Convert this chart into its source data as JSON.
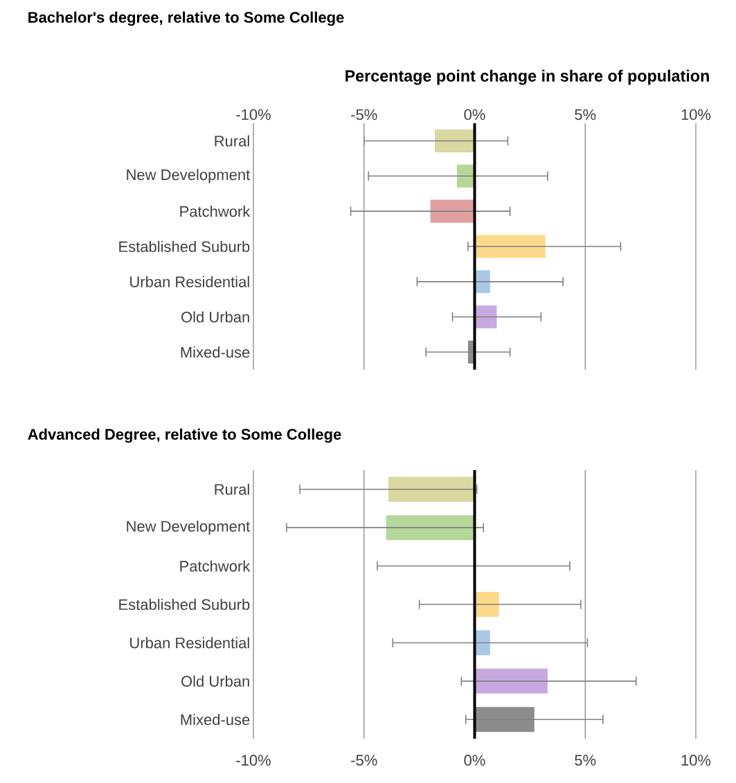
{
  "chart_data": [
    {
      "type": "bar",
      "orientation": "horizontal",
      "title": "Bachelor's degree, relative to Some College",
      "xlabel": "Percentage point change in share of population",
      "categories": [
        "Rural",
        "New Development",
        "Patchwork",
        "Established Suburb",
        "Urban Residential",
        "Old Urban",
        "Mixed-use"
      ],
      "values": [
        -1.8,
        -0.8,
        -2.0,
        3.2,
        0.7,
        1.0,
        -0.3
      ],
      "colors": [
        "#d8d8a0",
        "#b5d89a",
        "#e0a0a0",
        "#fdd88a",
        "#a8c8e6",
        "#c8a8e0",
        "#8c8c8c"
      ],
      "errors": [
        [
          -5.0,
          1.5
        ],
        [
          -4.8,
          3.3
        ],
        [
          -5.6,
          1.6
        ],
        [
          -0.3,
          6.6
        ],
        [
          -2.6,
          4.0
        ],
        [
          -1.0,
          3.0
        ],
        [
          -2.2,
          1.6
        ]
      ],
      "xlim": [
        -10,
        10
      ],
      "xticks": [
        {
          "value": -10,
          "label": "-10%"
        },
        {
          "value": -5,
          "label": "-5%"
        },
        {
          "value": 0,
          "label": "0%"
        },
        {
          "value": 5,
          "label": "5%"
        },
        {
          "value": 10,
          "label": "10%"
        }
      ],
      "grid": "x",
      "ref_lines": [
        {
          "axis": "x",
          "value": 0,
          "color": "#000000"
        }
      ]
    },
    {
      "type": "bar",
      "orientation": "horizontal",
      "title": "Advanced Degree, relative to Some College",
      "categories": [
        "Rural",
        "New Development",
        "Patchwork",
        "Established Suburb",
        "Urban Residential",
        "Old Urban",
        "Mixed-use"
      ],
      "values": [
        -3.9,
        -4.0,
        0,
        1.1,
        0.7,
        3.3,
        2.7
      ],
      "colors": [
        "#d8d8a0",
        "#b5d89a",
        "#e0a0a0",
        "#fdd88a",
        "#a8c8e6",
        "#c8a8e0",
        "#8c8c8c"
      ],
      "errors": [
        [
          -7.9,
          0.1
        ],
        [
          -8.5,
          0.4
        ],
        [
          -4.4,
          4.3
        ],
        [
          -2.5,
          4.8
        ],
        [
          -3.7,
          5.1
        ],
        [
          -0.6,
          7.3
        ],
        [
          -0.4,
          5.8
        ]
      ],
      "xlim": [
        -10,
        10
      ],
      "xticks": [
        {
          "value": -10,
          "label": "-10%"
        },
        {
          "value": -5,
          "label": "-5%"
        },
        {
          "value": 0,
          "label": "0%"
        },
        {
          "value": 5,
          "label": "5%"
        },
        {
          "value": 10,
          "label": "10%"
        }
      ],
      "grid": "x",
      "ref_lines": [
        {
          "axis": "x",
          "value": 0,
          "color": "#000000"
        }
      ]
    }
  ]
}
